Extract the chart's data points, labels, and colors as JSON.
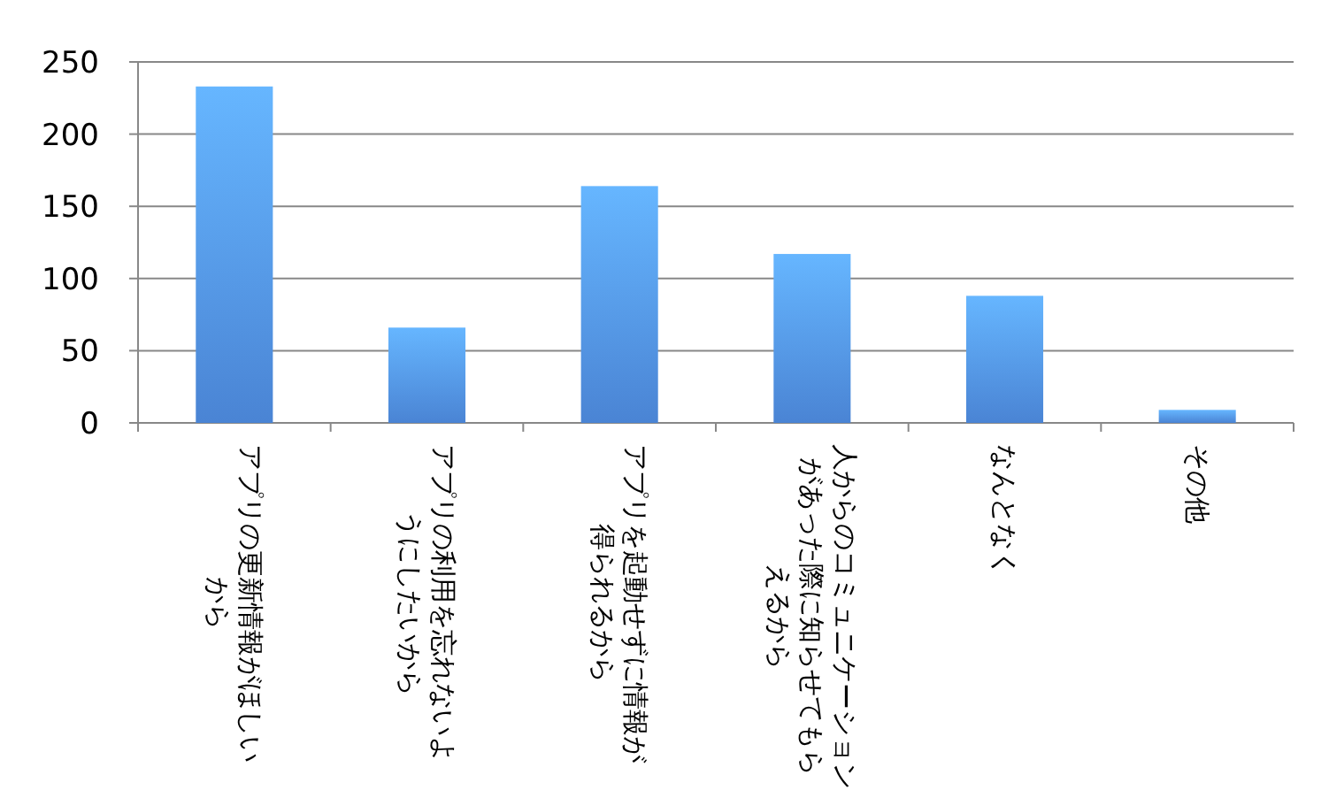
{
  "chart_data": {
    "type": "bar",
    "categories": [
      "アプリの更新情報がほしいから",
      "アプリの利用を忘れないようにしたいから",
      "アプリを起動せずに情報が得られるから",
      "人からのコミュニケーションがあった際に知らせてもらえるから",
      "なんとなく",
      "その他"
    ],
    "values": [
      233,
      66,
      164,
      117,
      88,
      9
    ],
    "color": "#4a84d4",
    "ylim": [
      0,
      250
    ],
    "yticks": [
      0,
      50,
      100,
      150,
      200,
      250
    ],
    "grid": "y"
  }
}
